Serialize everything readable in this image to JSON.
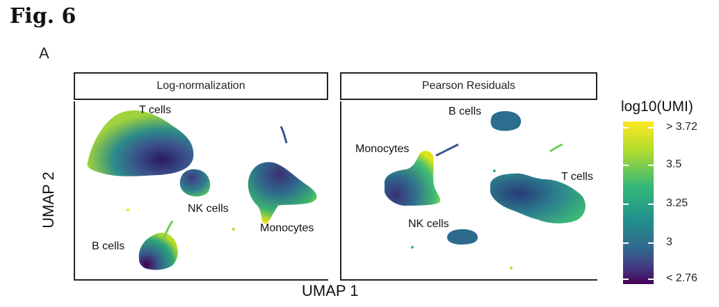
{
  "figure": {
    "title": "Fig. 6",
    "panel_label": "A"
  },
  "panels": [
    {
      "strip_title": "Log-normalization",
      "cluster_labels": [
        "T cells",
        "NK cells",
        "Monocytes",
        "B cells"
      ]
    },
    {
      "strip_title": "Pearson Residuals",
      "cluster_labels": [
        "B cells",
        "Monocytes",
        "T cells",
        "NK cells"
      ]
    }
  ],
  "axes": {
    "xlabel": "UMAP 1",
    "ylabel": "UMAP 2"
  },
  "legend": {
    "title": "log10(UMI)",
    "ticks": [
      "> 3.72",
      "3.5",
      "3.25",
      "3",
      "< 2.76"
    ],
    "colors": [
      "#fde725",
      "#b5de2b",
      "#35b779",
      "#26828e",
      "#31688e",
      "#3e4a89",
      "#440154"
    ]
  },
  "chart_data": {
    "type": "scatter",
    "facets": [
      "Log-normalization",
      "Pearson Residuals"
    ],
    "xlabel": "UMAP 1",
    "ylabel": "UMAP 2",
    "color_scale": {
      "title": "log10(UMI)",
      "min": 2.76,
      "max": 3.72,
      "tick_labels": [
        "> 3.72",
        "3.5",
        "3.25",
        "3",
        "< 2.76"
      ],
      "palette": "viridis"
    },
    "clusters": {
      "Log-normalization": [
        "T cells",
        "NK cells",
        "Monocytes",
        "B cells"
      ],
      "Pearson Residuals": [
        "B cells",
        "Monocytes",
        "T cells",
        "NK cells"
      ]
    }
  }
}
